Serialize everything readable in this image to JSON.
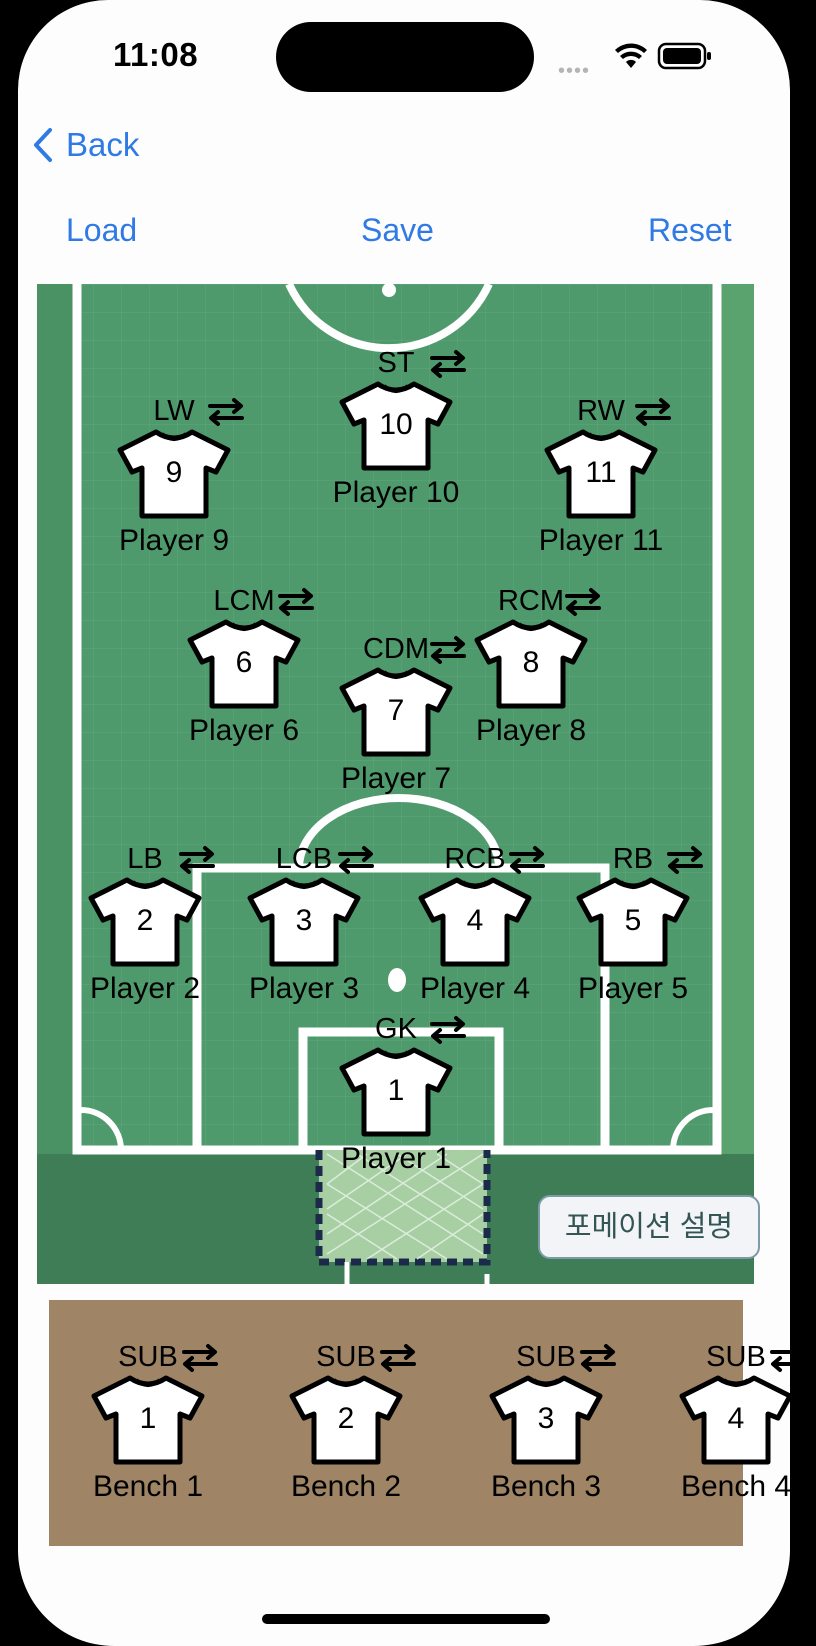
{
  "status_bar": {
    "time": "11:08"
  },
  "nav": {
    "back_label": "Back"
  },
  "toolbar": {
    "load_label": "Load",
    "save_label": "Save",
    "reset_label": "Reset"
  },
  "formation_button_label": "포메이션 설명",
  "players": [
    {
      "position": "ST",
      "number": "10",
      "name": "Player 10"
    },
    {
      "position": "LW",
      "number": "9",
      "name": "Player 9"
    },
    {
      "position": "RW",
      "number": "11",
      "name": "Player 11"
    },
    {
      "position": "LCM",
      "number": "6",
      "name": "Player 6"
    },
    {
      "position": "RCM",
      "number": "8",
      "name": "Player 8"
    },
    {
      "position": "CDM",
      "number": "7",
      "name": "Player 7"
    },
    {
      "position": "LB",
      "number": "2",
      "name": "Player 2"
    },
    {
      "position": "LCB",
      "number": "3",
      "name": "Player 3"
    },
    {
      "position": "RCB",
      "number": "4",
      "name": "Player 4"
    },
    {
      "position": "RB",
      "number": "5",
      "name": "Player 5"
    },
    {
      "position": "GK",
      "number": "1",
      "name": "Player 1"
    }
  ],
  "bench": [
    {
      "position": "SUB",
      "number": "1",
      "name": "Bench 1"
    },
    {
      "position": "SUB",
      "number": "2",
      "name": "Bench 2"
    },
    {
      "position": "SUB",
      "number": "3",
      "name": "Bench 3"
    },
    {
      "position": "SUB",
      "number": "4",
      "name": "Bench 4"
    }
  ],
  "colors": {
    "accent": "#2f7ae5",
    "pitch_green": "#4f9a6c",
    "bench_brown": "#9f8566",
    "line_white": "#ffffff"
  }
}
